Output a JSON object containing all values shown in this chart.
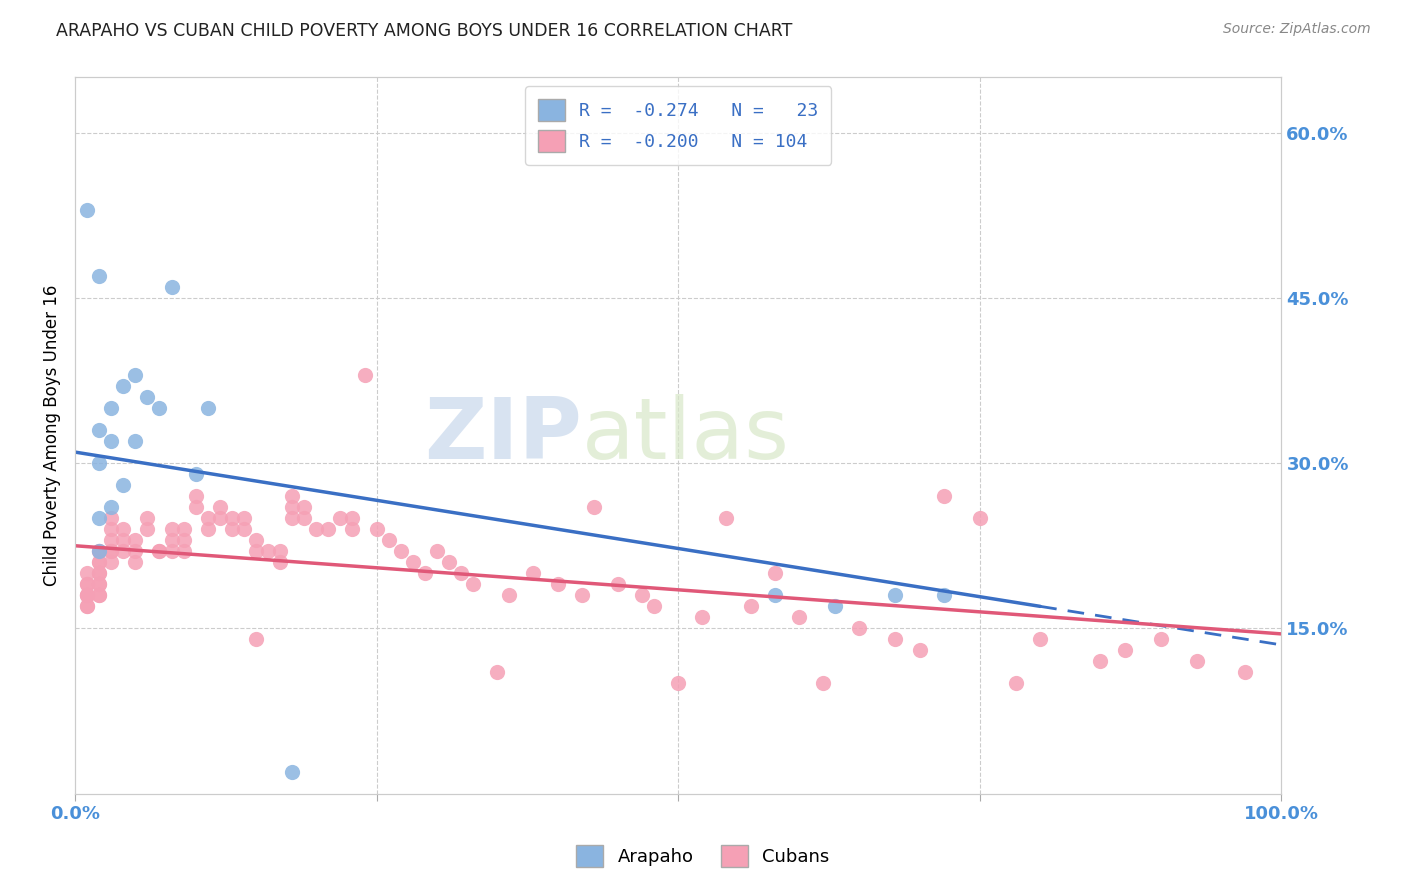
{
  "title": "ARAPAHO VS CUBAN CHILD POVERTY AMONG BOYS UNDER 16 CORRELATION CHART",
  "source": "Source: ZipAtlas.com",
  "ylabel": "Child Poverty Among Boys Under 16",
  "xlim": [
    0,
    1.0
  ],
  "ylim": [
    0,
    0.65
  ],
  "yticks_right": [
    0.15,
    0.3,
    0.45,
    0.6
  ],
  "yticklabels_right": [
    "15.0%",
    "30.0%",
    "45.0%",
    "60.0%"
  ],
  "grid_color": "#cccccc",
  "watermark_zip": "ZIP",
  "watermark_atlas": "atlas",
  "arapaho_color": "#8ab4e0",
  "cuban_color": "#f5a0b5",
  "arapaho_line_color": "#3a6fc4",
  "cuban_line_color": "#e05878",
  "legend_label_arapaho": "R =  -0.274   N =   23",
  "legend_label_cuban": "R =  -0.200   N = 104",
  "legend_x_arapaho": "Arapaho",
  "legend_x_cuban": "Cubans",
  "arapaho_x": [
    0.01,
    0.02,
    0.02,
    0.02,
    0.03,
    0.03,
    0.04,
    0.05,
    0.05,
    0.06,
    0.07,
    0.08,
    0.1,
    0.11,
    0.58,
    0.63,
    0.68,
    0.72,
    0.18,
    0.02,
    0.02,
    0.03,
    0.04
  ],
  "arapaho_y": [
    0.53,
    0.47,
    0.33,
    0.3,
    0.32,
    0.35,
    0.37,
    0.38,
    0.32,
    0.36,
    0.35,
    0.46,
    0.29,
    0.35,
    0.18,
    0.17,
    0.18,
    0.18,
    0.02,
    0.22,
    0.25,
    0.26,
    0.28
  ],
  "cuban_x": [
    0.01,
    0.01,
    0.01,
    0.01,
    0.01,
    0.01,
    0.01,
    0.01,
    0.02,
    0.02,
    0.02,
    0.02,
    0.02,
    0.02,
    0.02,
    0.02,
    0.02,
    0.02,
    0.03,
    0.03,
    0.03,
    0.03,
    0.03,
    0.03,
    0.04,
    0.04,
    0.04,
    0.05,
    0.05,
    0.05,
    0.06,
    0.06,
    0.07,
    0.07,
    0.08,
    0.08,
    0.08,
    0.09,
    0.09,
    0.09,
    0.1,
    0.1,
    0.11,
    0.11,
    0.12,
    0.12,
    0.13,
    0.13,
    0.14,
    0.14,
    0.15,
    0.15,
    0.15,
    0.16,
    0.17,
    0.17,
    0.18,
    0.18,
    0.18,
    0.19,
    0.19,
    0.2,
    0.21,
    0.22,
    0.23,
    0.23,
    0.24,
    0.25,
    0.26,
    0.27,
    0.28,
    0.29,
    0.3,
    0.31,
    0.32,
    0.33,
    0.35,
    0.36,
    0.38,
    0.4,
    0.42,
    0.43,
    0.45,
    0.47,
    0.48,
    0.5,
    0.52,
    0.54,
    0.56,
    0.58,
    0.6,
    0.62,
    0.65,
    0.68,
    0.7,
    0.72,
    0.75,
    0.78,
    0.8,
    0.85,
    0.87,
    0.9,
    0.93,
    0.97
  ],
  "cuban_y": [
    0.2,
    0.19,
    0.19,
    0.18,
    0.18,
    0.18,
    0.17,
    0.17,
    0.22,
    0.22,
    0.21,
    0.21,
    0.2,
    0.2,
    0.19,
    0.19,
    0.18,
    0.18,
    0.25,
    0.24,
    0.23,
    0.22,
    0.22,
    0.21,
    0.24,
    0.23,
    0.22,
    0.23,
    0.22,
    0.21,
    0.25,
    0.24,
    0.22,
    0.22,
    0.24,
    0.23,
    0.22,
    0.24,
    0.23,
    0.22,
    0.27,
    0.26,
    0.25,
    0.24,
    0.26,
    0.25,
    0.25,
    0.24,
    0.25,
    0.24,
    0.23,
    0.22,
    0.14,
    0.22,
    0.22,
    0.21,
    0.27,
    0.26,
    0.25,
    0.26,
    0.25,
    0.24,
    0.24,
    0.25,
    0.25,
    0.24,
    0.38,
    0.24,
    0.23,
    0.22,
    0.21,
    0.2,
    0.22,
    0.21,
    0.2,
    0.19,
    0.11,
    0.18,
    0.2,
    0.19,
    0.18,
    0.26,
    0.19,
    0.18,
    0.17,
    0.1,
    0.16,
    0.25,
    0.17,
    0.2,
    0.16,
    0.1,
    0.15,
    0.14,
    0.13,
    0.27,
    0.25,
    0.1,
    0.14,
    0.12,
    0.13,
    0.14,
    0.12,
    0.11
  ],
  "arapaho_line_x0": 0.0,
  "arapaho_line_y0": 0.31,
  "arapaho_line_x1": 0.8,
  "arapaho_line_y1": 0.17,
  "cuban_line_x0": 0.0,
  "cuban_line_y0": 0.225,
  "cuban_line_x1": 1.0,
  "cuban_line_y1": 0.145
}
